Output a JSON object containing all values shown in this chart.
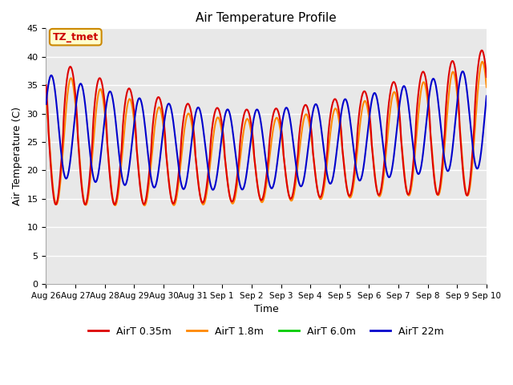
{
  "title": "Air Temperature Profile",
  "xlabel": "Time",
  "ylabel": "Air Temperature (C)",
  "ylim": [
    0,
    45
  ],
  "xlim_days": [
    0,
    15
  ],
  "plot_bg_color": "#e8e8e8",
  "grid_color": "white",
  "annotation_text": "TZ_tmet",
  "annotation_bg": "#ffffcc",
  "annotation_border": "#cc8800",
  "annotation_text_color": "#cc0000",
  "series": [
    {
      "label": "AirT 0.35m",
      "color": "#dd0000",
      "lw": 1.5
    },
    {
      "label": "AirT 1.8m",
      "color": "#ff8800",
      "lw": 1.5
    },
    {
      "label": "AirT 6.0m",
      "color": "#00cc00",
      "lw": 1.5
    },
    {
      "label": "AirT 22m",
      "color": "#0000cc",
      "lw": 1.5
    }
  ],
  "xtick_labels": [
    "Aug 26",
    "Aug 27",
    "Aug 28",
    "Aug 29",
    "Aug 30",
    "Aug 31",
    "Sep 1",
    "Sep 2",
    "Sep 3",
    "Sep 4",
    "Sep 5",
    "Sep 6",
    "Sep 7",
    "Sep 8",
    "Sep 9",
    "Sep 10"
  ],
  "xtick_positions": [
    0,
    1,
    2,
    3,
    4,
    5,
    6,
    7,
    8,
    9,
    10,
    11,
    12,
    13,
    14,
    15
  ],
  "ytick_positions": [
    0,
    5,
    10,
    15,
    20,
    25,
    30,
    35,
    40,
    45
  ],
  "ytick_labels": [
    "0",
    "5",
    "10",
    "15",
    "20",
    "25",
    "30",
    "35",
    "40",
    "45"
  ]
}
